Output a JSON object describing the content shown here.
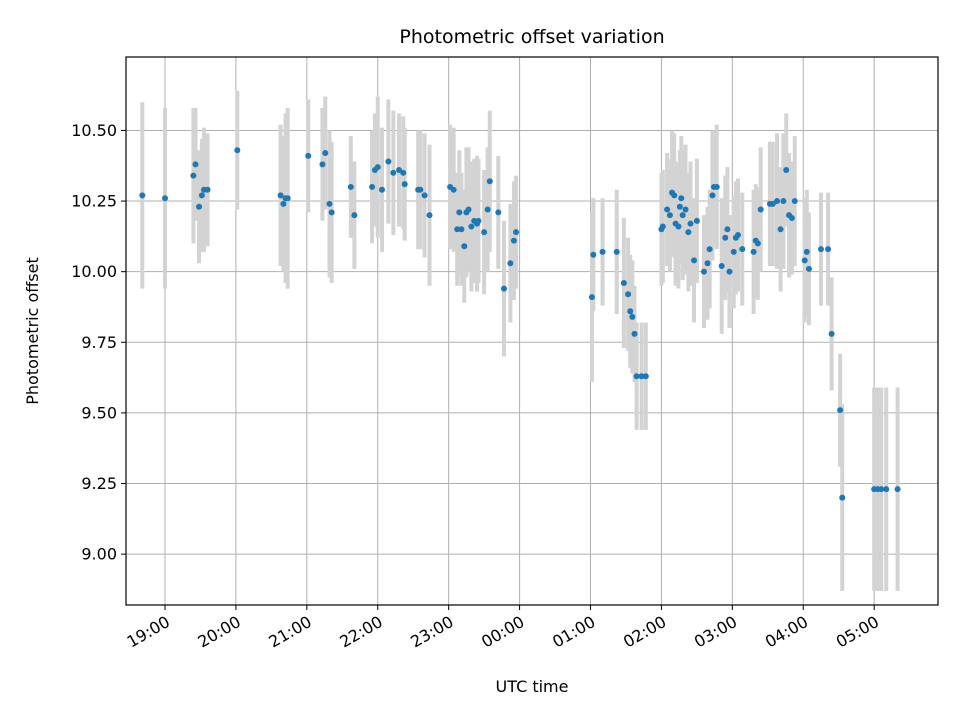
{
  "chart_data": {
    "type": "scatter",
    "title": "Photometric offset variation",
    "xlabel": "UTC time",
    "ylabel": "Photometric offset",
    "grid": true,
    "xlim": [
      18.45,
      29.9
    ],
    "ylim": [
      8.82,
      10.76
    ],
    "x_unit": "hours since 00:00 UTC of first night (values above 24 are the next day)",
    "x_ticks": [
      {
        "v": 19,
        "label": "19:00"
      },
      {
        "v": 20,
        "label": "20:00"
      },
      {
        "v": 21,
        "label": "21:00"
      },
      {
        "v": 22,
        "label": "22:00"
      },
      {
        "v": 23,
        "label": "23:00"
      },
      {
        "v": 24,
        "label": "00:00"
      },
      {
        "v": 25,
        "label": "01:00"
      },
      {
        "v": 26,
        "label": "02:00"
      },
      {
        "v": 27,
        "label": "03:00"
      },
      {
        "v": 28,
        "label": "04:00"
      },
      {
        "v": 29,
        "label": "05:00"
      }
    ],
    "y_ticks": [
      {
        "v": 9.0,
        "label": "9.00"
      },
      {
        "v": 9.25,
        "label": "9.25"
      },
      {
        "v": 9.5,
        "label": "9.50"
      },
      {
        "v": 9.75,
        "label": "9.75"
      },
      {
        "v": 10.0,
        "label": "10.00"
      },
      {
        "v": 10.25,
        "label": "10.25"
      },
      {
        "v": 10.5,
        "label": "10.50"
      }
    ],
    "colors": {
      "marker": "#1f77b4",
      "errorbar": "#d3d3d3",
      "grid": "#b0b0b0"
    },
    "series": [
      {
        "points": [
          [
            18.68,
            10.27,
            0.33
          ],
          [
            19.0,
            10.26,
            0.32
          ],
          [
            19.4,
            10.34,
            0.24
          ],
          [
            19.43,
            10.38,
            0.2
          ],
          [
            19.48,
            10.23,
            0.2
          ],
          [
            19.52,
            10.27,
            0.2
          ],
          [
            19.55,
            10.29,
            0.22
          ],
          [
            19.6,
            10.29,
            0.2
          ],
          [
            20.02,
            10.43,
            0.21
          ],
          [
            20.63,
            10.27,
            0.25
          ],
          [
            20.67,
            10.24,
            0.24
          ],
          [
            20.7,
            10.26,
            0.3
          ],
          [
            20.73,
            10.26,
            0.32
          ],
          [
            21.02,
            10.41,
            0.2
          ],
          [
            21.22,
            10.38,
            0.2
          ],
          [
            21.26,
            10.42,
            0.2
          ],
          [
            21.32,
            10.24,
            0.26
          ],
          [
            21.35,
            10.21,
            0.25
          ],
          [
            21.62,
            10.3,
            0.18
          ],
          [
            21.67,
            10.2,
            0.19
          ],
          [
            21.92,
            10.3,
            0.2
          ],
          [
            21.96,
            10.36,
            0.2
          ],
          [
            22.0,
            10.37,
            0.25
          ],
          [
            22.06,
            10.29,
            0.22
          ],
          [
            22.15,
            10.39,
            0.22
          ],
          [
            22.22,
            10.35,
            0.22
          ],
          [
            22.3,
            10.36,
            0.2
          ],
          [
            22.36,
            10.35,
            0.2
          ],
          [
            22.38,
            10.31,
            0.2
          ],
          [
            22.57,
            10.29,
            0.21
          ],
          [
            22.6,
            10.29,
            0.21
          ],
          [
            22.66,
            10.27,
            0.22
          ],
          [
            22.73,
            10.2,
            0.25
          ],
          [
            23.02,
            10.3,
            0.22
          ],
          [
            23.07,
            10.29,
            0.22
          ],
          [
            23.12,
            10.15,
            0.2
          ],
          [
            23.15,
            10.21,
            0.22
          ],
          [
            23.18,
            10.15,
            0.2
          ],
          [
            23.22,
            10.09,
            0.2
          ],
          [
            23.25,
            10.21,
            0.23
          ],
          [
            23.28,
            10.22,
            0.22
          ],
          [
            23.32,
            10.16,
            0.23
          ],
          [
            23.36,
            10.18,
            0.22
          ],
          [
            23.4,
            10.17,
            0.24
          ],
          [
            23.42,
            10.18,
            0.22
          ],
          [
            23.5,
            10.14,
            0.22
          ],
          [
            23.55,
            10.22,
            0.22
          ],
          [
            23.58,
            10.32,
            0.25
          ],
          [
            23.7,
            10.21,
            0.2
          ],
          [
            23.78,
            9.94,
            0.24
          ],
          [
            23.87,
            10.03,
            0.21
          ],
          [
            23.92,
            10.11,
            0.21
          ],
          [
            23.95,
            10.14,
            0.2
          ],
          [
            25.02,
            9.91,
            0.3
          ],
          [
            25.04,
            10.06,
            0.2
          ],
          [
            25.17,
            10.07,
            0.19
          ],
          [
            25.37,
            10.07,
            0.22
          ],
          [
            25.47,
            9.96,
            0.23
          ],
          [
            25.53,
            9.92,
            0.2
          ],
          [
            25.56,
            9.86,
            0.2
          ],
          [
            25.59,
            9.84,
            0.2
          ],
          [
            25.62,
            9.78,
            0.17
          ],
          [
            25.65,
            9.63,
            0.19
          ],
          [
            25.72,
            9.63,
            0.19
          ],
          [
            25.78,
            9.63,
            0.19
          ],
          [
            26.0,
            10.15,
            0.2
          ],
          [
            26.02,
            10.16,
            0.2
          ],
          [
            26.08,
            10.22,
            0.2
          ],
          [
            26.12,
            10.2,
            0.2
          ],
          [
            26.15,
            10.28,
            0.22
          ],
          [
            26.18,
            10.27,
            0.22
          ],
          [
            26.2,
            10.17,
            0.22
          ],
          [
            26.24,
            10.16,
            0.22
          ],
          [
            26.26,
            10.23,
            0.2
          ],
          [
            26.28,
            10.26,
            0.22
          ],
          [
            26.3,
            10.2,
            0.23
          ],
          [
            26.34,
            10.22,
            0.23
          ],
          [
            26.38,
            10.14,
            0.21
          ],
          [
            26.41,
            10.17,
            0.22
          ],
          [
            26.46,
            10.04,
            0.22
          ],
          [
            26.5,
            10.18,
            0.22
          ],
          [
            26.6,
            10.0,
            0.2
          ],
          [
            26.65,
            10.03,
            0.2
          ],
          [
            26.68,
            10.08,
            0.21
          ],
          [
            26.72,
            10.27,
            0.23
          ],
          [
            26.74,
            10.3,
            0.2
          ],
          [
            26.78,
            10.3,
            0.22
          ],
          [
            26.85,
            10.02,
            0.24
          ],
          [
            26.9,
            10.12,
            0.22
          ],
          [
            26.93,
            10.15,
            0.22
          ],
          [
            26.96,
            10.0,
            0.2
          ],
          [
            27.02,
            10.07,
            0.2
          ],
          [
            27.05,
            10.12,
            0.2
          ],
          [
            27.08,
            10.13,
            0.2
          ],
          [
            27.14,
            10.08,
            0.2
          ],
          [
            27.3,
            10.07,
            0.22
          ],
          [
            27.33,
            10.11,
            0.2
          ],
          [
            27.36,
            10.1,
            0.2
          ],
          [
            27.4,
            10.22,
            0.22
          ],
          [
            27.53,
            10.24,
            0.22
          ],
          [
            27.57,
            10.24,
            0.22
          ],
          [
            27.63,
            10.25,
            0.24
          ],
          [
            27.68,
            10.15,
            0.22
          ],
          [
            27.72,
            10.25,
            0.24
          ],
          [
            27.76,
            10.36,
            0.2
          ],
          [
            27.8,
            10.2,
            0.22
          ],
          [
            27.84,
            10.19,
            0.2
          ],
          [
            27.88,
            10.25,
            0.23
          ],
          [
            28.02,
            10.04,
            0.22
          ],
          [
            28.05,
            10.07,
            0.22
          ],
          [
            28.08,
            10.01,
            0.2
          ],
          [
            28.25,
            10.08,
            0.2
          ],
          [
            28.35,
            10.08,
            0.2
          ],
          [
            28.4,
            9.78,
            0.2
          ],
          [
            28.52,
            9.51,
            0.2
          ],
          [
            28.55,
            9.2,
            0.33
          ],
          [
            29.0,
            9.23,
            0.36
          ],
          [
            29.05,
            9.23,
            0.36
          ],
          [
            29.1,
            9.23,
            0.36
          ],
          [
            29.17,
            9.23,
            0.36
          ],
          [
            29.33,
            9.23,
            0.36
          ]
        ]
      }
    ]
  }
}
